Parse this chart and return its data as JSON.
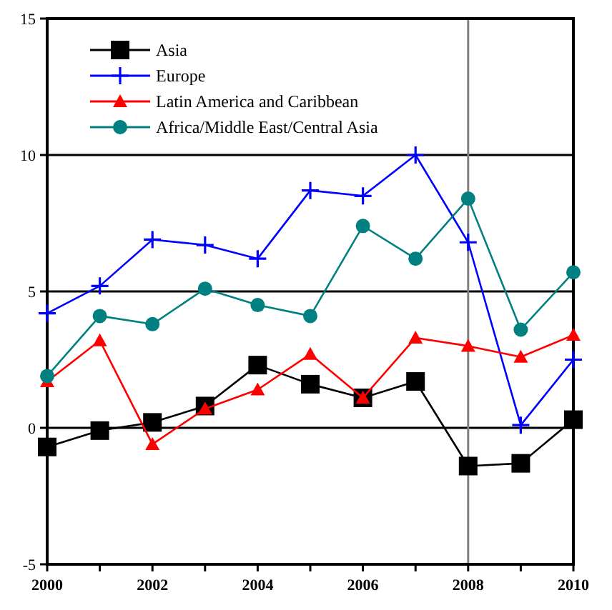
{
  "chart_data": {
    "type": "line",
    "x": [
      2000,
      2001,
      2002,
      2003,
      2004,
      2005,
      2006,
      2007,
      2008,
      2009,
      2010
    ],
    "xlim": [
      2000,
      2010
    ],
    "xticks": [
      2000,
      {
        "value": 2001,
        "label": null
      },
      2002,
      {
        "value": 2003,
        "label": null
      },
      2004,
      {
        "value": 2005,
        "label": null
      },
      2006,
      {
        "value": 2007,
        "label": null
      },
      2008,
      {
        "value": 2009,
        "label": null
      },
      2010
    ],
    "ylim": [
      -5,
      15
    ],
    "yticks": [
      -5,
      0,
      5,
      10,
      15
    ],
    "grid": "y",
    "legend": "top left",
    "ref_lines": [
      {
        "axis": "x",
        "value": 2008,
        "color": "#808080"
      }
    ],
    "series": [
      {
        "name": "Asia",
        "color": "#000000",
        "marker": "square",
        "values": [
          -0.7,
          -0.1,
          0.2,
          0.8,
          2.3,
          1.6,
          1.1,
          1.7,
          -1.4,
          -1.3,
          0.3
        ]
      },
      {
        "name": "Europe",
        "color": "#0000ff",
        "marker": "cross",
        "values": [
          4.2,
          5.2,
          6.9,
          6.7,
          6.2,
          8.7,
          8.5,
          10.0,
          6.8,
          0.1,
          2.5
        ]
      },
      {
        "name": "Latin America and Caribbean",
        "color": "#ff0000",
        "marker": "triangle",
        "values": [
          1.7,
          3.2,
          -0.6,
          0.7,
          1.4,
          2.7,
          1.1,
          3.3,
          3.0,
          2.6,
          3.4
        ]
      },
      {
        "name": "Africa/Middle East/Central Asia",
        "color": "#008080",
        "marker": "circle",
        "values": [
          1.9,
          4.1,
          3.8,
          5.1,
          4.5,
          4.1,
          7.4,
          6.2,
          8.4,
          3.6,
          5.7
        ]
      }
    ]
  }
}
